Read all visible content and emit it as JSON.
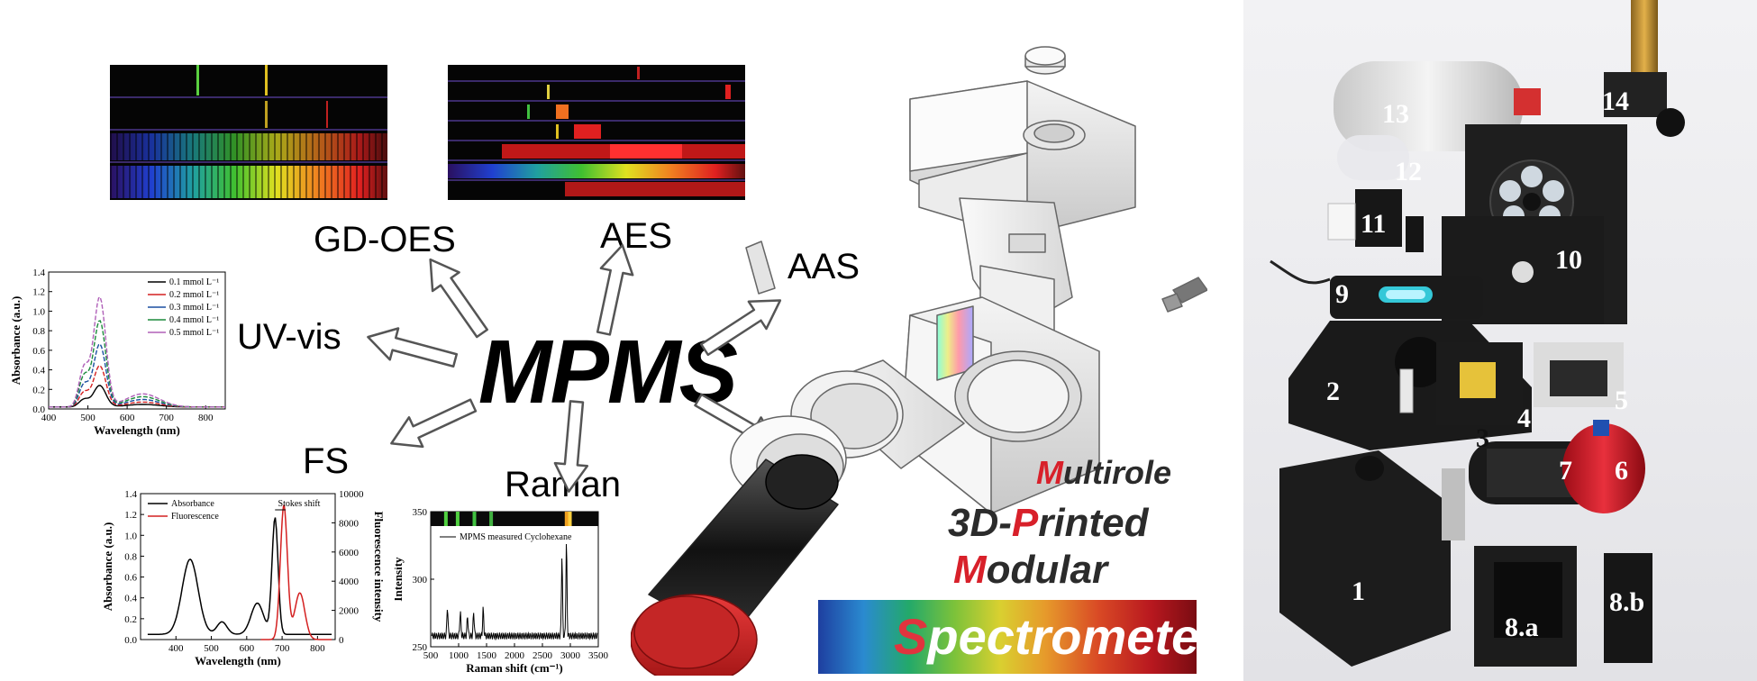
{
  "hub_label": "MPMS",
  "techniques": {
    "gd_oes": "GD-OES",
    "aes": "AES",
    "aas": "AAS",
    "uv_vis": "UV-vis",
    "fs": "FS",
    "raman": "Raman",
    "more": "..."
  },
  "title": {
    "line1_first": "M",
    "line1_rest": "ultirole",
    "line2_pre": "3D-",
    "line2_first": "P",
    "line2_rest": "rinted",
    "line3_first": "M",
    "line3_rest": "odular",
    "line4_first": "S",
    "line4_rest": "pectrometer"
  },
  "photo_numbers": [
    "1",
    "2",
    "3",
    "4",
    "5",
    "6",
    "7",
    "8.a",
    "8.b",
    "9",
    "10",
    "11",
    "12",
    "13",
    "14"
  ],
  "chart_data": [
    {
      "type": "line",
      "xlabel": "Wavelength (nm)",
      "ylabel": "Absorbance (a.u.)",
      "xlim": [
        400,
        850
      ],
      "ylim": [
        0,
        1.4
      ],
      "x_ticks": [
        "400",
        "500",
        "600",
        "700",
        "800"
      ],
      "y_ticks": [
        "0.0",
        "0.2",
        "0.4",
        "0.6",
        "0.8",
        "1.0",
        "1.2",
        "1.4"
      ],
      "series": [
        {
          "name": "0.1 mmol L⁻¹",
          "color": "#000000",
          "peak": 0.22
        },
        {
          "name": "0.2 mmol L⁻¹",
          "color": "#d42020",
          "peak": 0.42
        },
        {
          "name": "0.3 mmol L⁻¹",
          "color": "#1a4fa0",
          "peak": 0.64
        },
        {
          "name": "0.4 mmol L⁻¹",
          "color": "#1b8a3a",
          "peak": 0.88
        },
        {
          "name": "0.5 mmol L⁻¹",
          "color": "#b060b8",
          "peak": 1.12
        }
      ]
    },
    {
      "type": "line",
      "xlabel": "Wavelength (nm)",
      "ylabel": "Absorbance (a.u.)",
      "y2label": "Fluorescence intensity",
      "xlim": [
        300,
        850
      ],
      "ylim": [
        0,
        1.4
      ],
      "y2lim": [
        0,
        10000
      ],
      "x_ticks": [
        "400",
        "500",
        "600",
        "700",
        "800"
      ],
      "y_ticks": [
        "0.0",
        "0.2",
        "0.4",
        "0.6",
        "0.8",
        "1.0",
        "1.2",
        "1.4"
      ],
      "y2_ticks": [
        "0",
        "2000",
        "4000",
        "6000",
        "8000",
        "10000"
      ],
      "annotation": "Stokes shift",
      "series": [
        {
          "name": "Absorbance",
          "color": "#000000"
        },
        {
          "name": "Fluorescence",
          "color": "#d42020"
        }
      ]
    },
    {
      "type": "line",
      "xlabel": "Raman shift (cm⁻¹)",
      "ylabel": "Intensity",
      "xlim": [
        500,
        3500
      ],
      "ylim": [
        250,
        350
      ],
      "x_ticks": [
        "500",
        "1000",
        "1500",
        "2000",
        "2500",
        "3000",
        "3500"
      ],
      "y_ticks": [
        "250",
        "300",
        "350"
      ],
      "series": [
        {
          "name": "MPMS measured Cyclohexane",
          "color": "#000000"
        }
      ]
    }
  ]
}
